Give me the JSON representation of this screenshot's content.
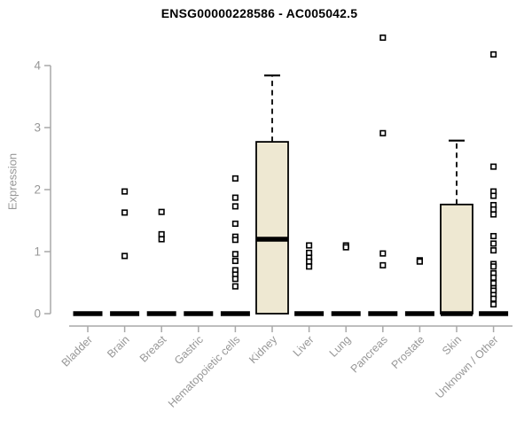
{
  "chart_data": {
    "type": "boxplot",
    "title": "ENSG00000228586 - AC005042.5",
    "xlabel": "",
    "ylabel": "Expression",
    "ylim": [
      0,
      4
    ],
    "yticks": [
      0,
      1,
      2,
      3,
      4
    ],
    "grid": false,
    "legend": false,
    "colors": {
      "box_fill": "#EEE8D2",
      "box_stroke": "#000000",
      "median": "#000000",
      "axis": "#A9A9A9",
      "tick_label": "#979797",
      "title": "#000000",
      "background": "#FFFFFF"
    },
    "categories": [
      "Bladder",
      "Brain",
      "Breast",
      "Gastric",
      "Hematopoietic cells",
      "Kidney",
      "Liver",
      "Lung",
      "Pancreas",
      "Prostate",
      "Skin",
      "Unknown / Other"
    ],
    "series": [
      {
        "category": "Bladder",
        "q1": 0,
        "median": 0,
        "q3": 0,
        "whisker_low": 0,
        "whisker_high": 0,
        "outliers": []
      },
      {
        "category": "Brain",
        "q1": 0,
        "median": 0,
        "q3": 0,
        "whisker_low": 0,
        "whisker_high": 0,
        "outliers": [
          1.97,
          1.63,
          0.93
        ]
      },
      {
        "category": "Breast",
        "q1": 0,
        "median": 0,
        "q3": 0,
        "whisker_low": 0,
        "whisker_high": 0,
        "outliers": [
          1.64,
          1.28,
          1.2
        ]
      },
      {
        "category": "Gastric",
        "q1": 0,
        "median": 0,
        "q3": 0,
        "whisker_low": 0,
        "whisker_high": 0,
        "outliers": []
      },
      {
        "category": "Hematopoietic cells",
        "q1": 0,
        "median": 0,
        "q3": 0,
        "whisker_low": 0,
        "whisker_high": 0,
        "outliers": [
          2.18,
          1.87,
          1.73,
          1.45,
          1.24,
          1.19,
          0.96,
          0.85,
          0.7,
          0.63,
          0.56,
          0.44
        ]
      },
      {
        "category": "Kidney",
        "q1": 0,
        "median": 1.2,
        "q3": 2.77,
        "whisker_low": 0,
        "whisker_high": 3.84,
        "outliers": []
      },
      {
        "category": "Liver",
        "q1": 0,
        "median": 0,
        "q3": 0,
        "whisker_low": 0,
        "whisker_high": 0,
        "outliers": [
          1.1,
          0.98,
          0.9,
          0.84,
          0.76
        ]
      },
      {
        "category": "Lung",
        "q1": 0,
        "median": 0,
        "q3": 0,
        "whisker_low": 0,
        "whisker_high": 0,
        "outliers": [
          1.1,
          1.07
        ]
      },
      {
        "category": "Pancreas",
        "q1": 0,
        "median": 0,
        "q3": 0,
        "whisker_low": 0,
        "whisker_high": 0,
        "outliers": [
          4.45,
          2.91,
          0.97,
          0.78
        ]
      },
      {
        "category": "Prostate",
        "q1": 0,
        "median": 0,
        "q3": 0,
        "whisker_low": 0,
        "whisker_high": 0,
        "outliers": [
          0.86,
          0.84
        ]
      },
      {
        "category": "Skin",
        "q1": 0,
        "median": 0,
        "q3": 1.76,
        "whisker_low": 0,
        "whisker_high": 2.79,
        "outliers": []
      },
      {
        "category": "Unknown / Other",
        "q1": 0,
        "median": 0,
        "q3": 0,
        "whisker_low": 0,
        "whisker_high": 0,
        "outliers": [
          4.18,
          2.37,
          1.97,
          1.9,
          1.75,
          1.68,
          1.6,
          1.25,
          1.13,
          1.02,
          0.8,
          0.76,
          0.65,
          0.58,
          0.49,
          0.41,
          0.37,
          0.3,
          0.24,
          0.15
        ]
      }
    ]
  }
}
